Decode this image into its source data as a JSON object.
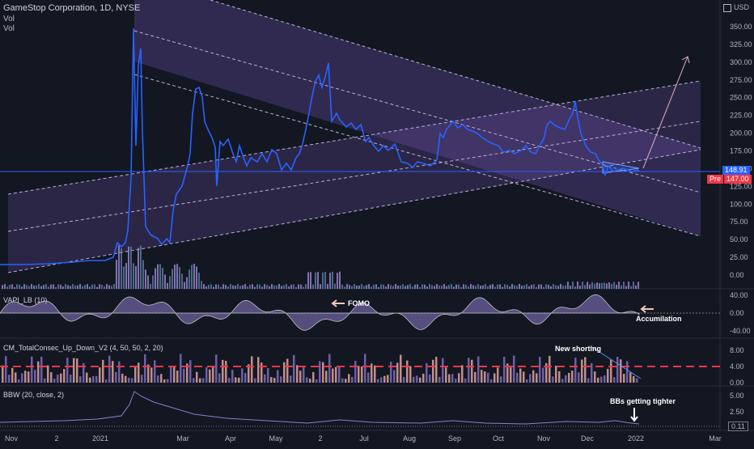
{
  "header": {
    "title": "GameStop Corporation, 1D, NYSE",
    "sub1": "Vol",
    "sub2": "Vol",
    "currency": "USD"
  },
  "colors": {
    "background": "#131722",
    "price_line": "#2962ff",
    "channel_fill": "#6a4ea6",
    "dashed": "#b8b0d8",
    "volume_up": "#9c89d6",
    "volume_dn": "#5b7ea3",
    "vapi": "#8e7ccc",
    "bars_up": "#e0a39e",
    "bars_dn": "#7e6cc0",
    "red_line": "#f23645",
    "price_badge": "#2962ff",
    "pre_badge": "#f23645"
  },
  "price_axis": {
    "ticks": [
      "350.00",
      "325.00",
      "300.00",
      "275.00",
      "250.00",
      "225.00",
      "200.00",
      "175.00",
      "150.00",
      "125.00",
      "100.00",
      "75.00",
      "50.00",
      "25.00",
      "0.00"
    ],
    "current_price": "148.91",
    "pre_label": "Pre",
    "pre_price": "147.00"
  },
  "vapi": {
    "title": "VAPI_LB (10)",
    "ticks": [
      "40.00",
      "0.00",
      "-40.00"
    ],
    "annotations": {
      "fomo": "FOMO",
      "accumulation": "Accumilation"
    }
  },
  "cm": {
    "title": "CM_TotalConsec_Up_Down_V2 (4, 50, 50, 2, 20)",
    "ticks": [
      "8.00",
      "4.00",
      "0.00"
    ],
    "annotations": {
      "new_shorting": "New shorting"
    }
  },
  "bbw": {
    "title": "BBW (20, close, 2)",
    "ticks": [
      "5.00",
      "2.50"
    ],
    "current": "0.11",
    "annotations": {
      "tighter": "BBs getting tighter"
    }
  },
  "time_axis": [
    "Nov",
    "2",
    "2021",
    "Mar",
    "Apr",
    "May",
    "2",
    "Jul",
    "Aug",
    "Sep",
    "Oct",
    "Nov",
    "Dec",
    "2022",
    "Mar"
  ],
  "chart_data": {
    "type": "line",
    "title": "GameStop Corporation, 1D, NYSE",
    "x": [
      "Nov",
      "2",
      "2021",
      "Mar",
      "Apr",
      "May",
      "2",
      "Jul",
      "Aug",
      "Sep",
      "Oct",
      "Nov",
      "Dec",
      "2022"
    ],
    "series": [
      {
        "name": "GameStop Corporation",
        "values": [
          12,
          15,
          18,
          120,
          185,
          160,
          300,
          205,
          150,
          215,
          185,
          245,
          150,
          148.91
        ]
      }
    ],
    "ylim": [
      0,
      360
    ]
  }
}
